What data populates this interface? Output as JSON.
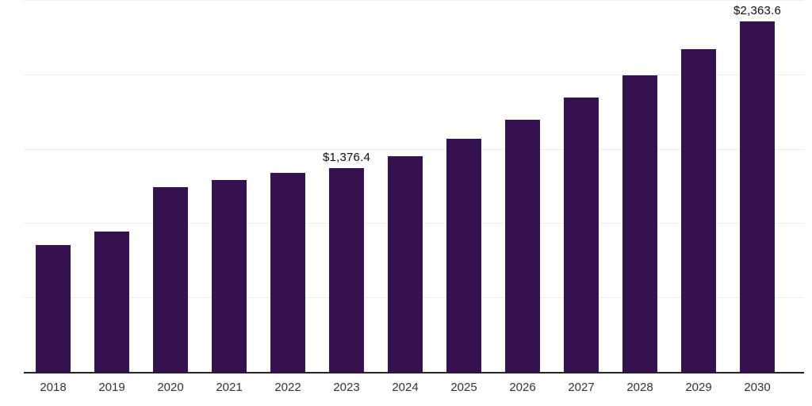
{
  "chart_data": {
    "type": "bar",
    "title": "",
    "xlabel": "",
    "ylabel": "",
    "categories": [
      "2018",
      "2019",
      "2020",
      "2021",
      "2022",
      "2023",
      "2024",
      "2025",
      "2026",
      "2027",
      "2028",
      "2029",
      "2030"
    ],
    "values": [
      861,
      949,
      1248,
      1298,
      1344,
      1376.4,
      1456,
      1573,
      1701,
      1850,
      2002,
      2175,
      2363.6
    ],
    "data_labels": [
      "",
      "",
      "",
      "",
      "",
      "$1,376.4",
      "",
      "",
      "",
      "",
      "",
      "",
      "$2,363.6"
    ],
    "ylim": [
      0,
      2506
    ],
    "gridline_values": [
      500,
      1000,
      1500,
      2000,
      2500
    ],
    "grid": true,
    "legend": "none",
    "bar_color": "#35124F",
    "gridline_color": "#ededed",
    "axis_line_color": "#262626",
    "tick_label_color": "#333333",
    "data_label_color": "#0d0d0d"
  }
}
